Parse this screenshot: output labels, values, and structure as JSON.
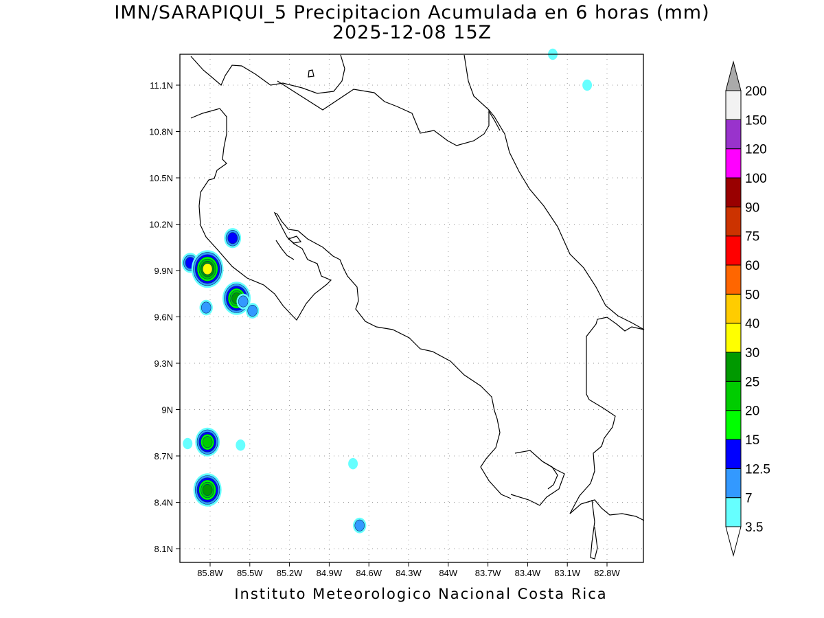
{
  "title": "IMN/SARAPIQUI_5 Precipitacion Acumulada en 6 horas (mm)",
  "subtitle": "2025-12-08 15Z",
  "footer": "Instituto Meteorologico Nacional Costa Rica",
  "map": {
    "lon_range": [
      -86.05,
      -83.1
    ],
    "lat_range": [
      8.0,
      11.3
    ],
    "grid": true,
    "x_ticks": [
      {
        "value": -85.8,
        "label": "85.8W"
      },
      {
        "value": -85.5,
        "label": "85.5W"
      },
      {
        "value": -85.2,
        "label": "85.2W"
      },
      {
        "value": -84.9,
        "label": "84.9W"
      },
      {
        "value": -84.6,
        "label": "84.6W"
      },
      {
        "value": -84.3,
        "label": "84.3W"
      },
      {
        "value": -84.0,
        "label": "84W"
      },
      {
        "value": -83.7,
        "label": "83.7W"
      },
      {
        "value": -83.4,
        "label": "83.4W"
      },
      {
        "value": -83.1,
        "label": "83.1W"
      },
      {
        "value": -82.8,
        "label": "82.8W"
      }
    ],
    "y_ticks": [
      {
        "value": 11.1,
        "label": "11.1N"
      },
      {
        "value": 10.8,
        "label": "10.8N"
      },
      {
        "value": 10.5,
        "label": "10.5N"
      },
      {
        "value": 10.2,
        "label": "10.2N"
      },
      {
        "value": 9.9,
        "label": "9.9N"
      },
      {
        "value": 9.6,
        "label": "9.6N"
      },
      {
        "value": 9.3,
        "label": "9.3N"
      },
      {
        "value": 9.0,
        "label": "9N"
      },
      {
        "value": 8.7,
        "label": "8.7N"
      },
      {
        "value": 8.4,
        "label": "8.4N"
      },
      {
        "value": 8.1,
        "label": "8.1N"
      }
    ]
  },
  "colorbar": {
    "levels": [
      "3.5",
      "7",
      "12.5",
      "15",
      "20",
      "25",
      "30",
      "40",
      "50",
      "60",
      "75",
      "90",
      "100",
      "120",
      "150",
      "200"
    ],
    "colors": [
      "#66ffff",
      "#3399ff",
      "#0000ff",
      "#00ff00",
      "#00cc00",
      "#009900",
      "#ffff00",
      "#ffcc00",
      "#ff6600",
      "#ff0000",
      "#cc3300",
      "#990000",
      "#ff00ff",
      "#9933cc",
      "#f2f2f2"
    ],
    "below_color": "#ffffff",
    "above_color": "#aaaaaa"
  },
  "precip_cells": [
    {
      "lon": -85.95,
      "lat": 9.95,
      "max_mm": 12.5
    },
    {
      "lon": -85.82,
      "lat": 9.91,
      "max_mm": 30
    },
    {
      "lon": -85.63,
      "lat": 10.11,
      "max_mm": 12.5
    },
    {
      "lon": -85.6,
      "lat": 9.72,
      "max_mm": 25
    },
    {
      "lon": -85.55,
      "lat": 9.7,
      "max_mm": 7
    },
    {
      "lon": -85.48,
      "lat": 9.64,
      "max_mm": 7
    },
    {
      "lon": -85.83,
      "lat": 9.66,
      "max_mm": 7
    },
    {
      "lon": -85.82,
      "lat": 8.79,
      "max_mm": 20
    },
    {
      "lon": -85.97,
      "lat": 8.78,
      "max_mm": 3.5
    },
    {
      "lon": -85.57,
      "lat": 8.77,
      "max_mm": 3.5
    },
    {
      "lon": -85.82,
      "lat": 8.48,
      "max_mm": 25
    },
    {
      "lon": -84.72,
      "lat": 8.65,
      "max_mm": 3.5
    },
    {
      "lon": -84.67,
      "lat": 8.25,
      "max_mm": 7
    },
    {
      "lon": -83.21,
      "lat": 11.3,
      "max_mm": 3.5
    },
    {
      "lon": -82.95,
      "lat": 11.1,
      "max_mm": 3.5
    }
  ]
}
